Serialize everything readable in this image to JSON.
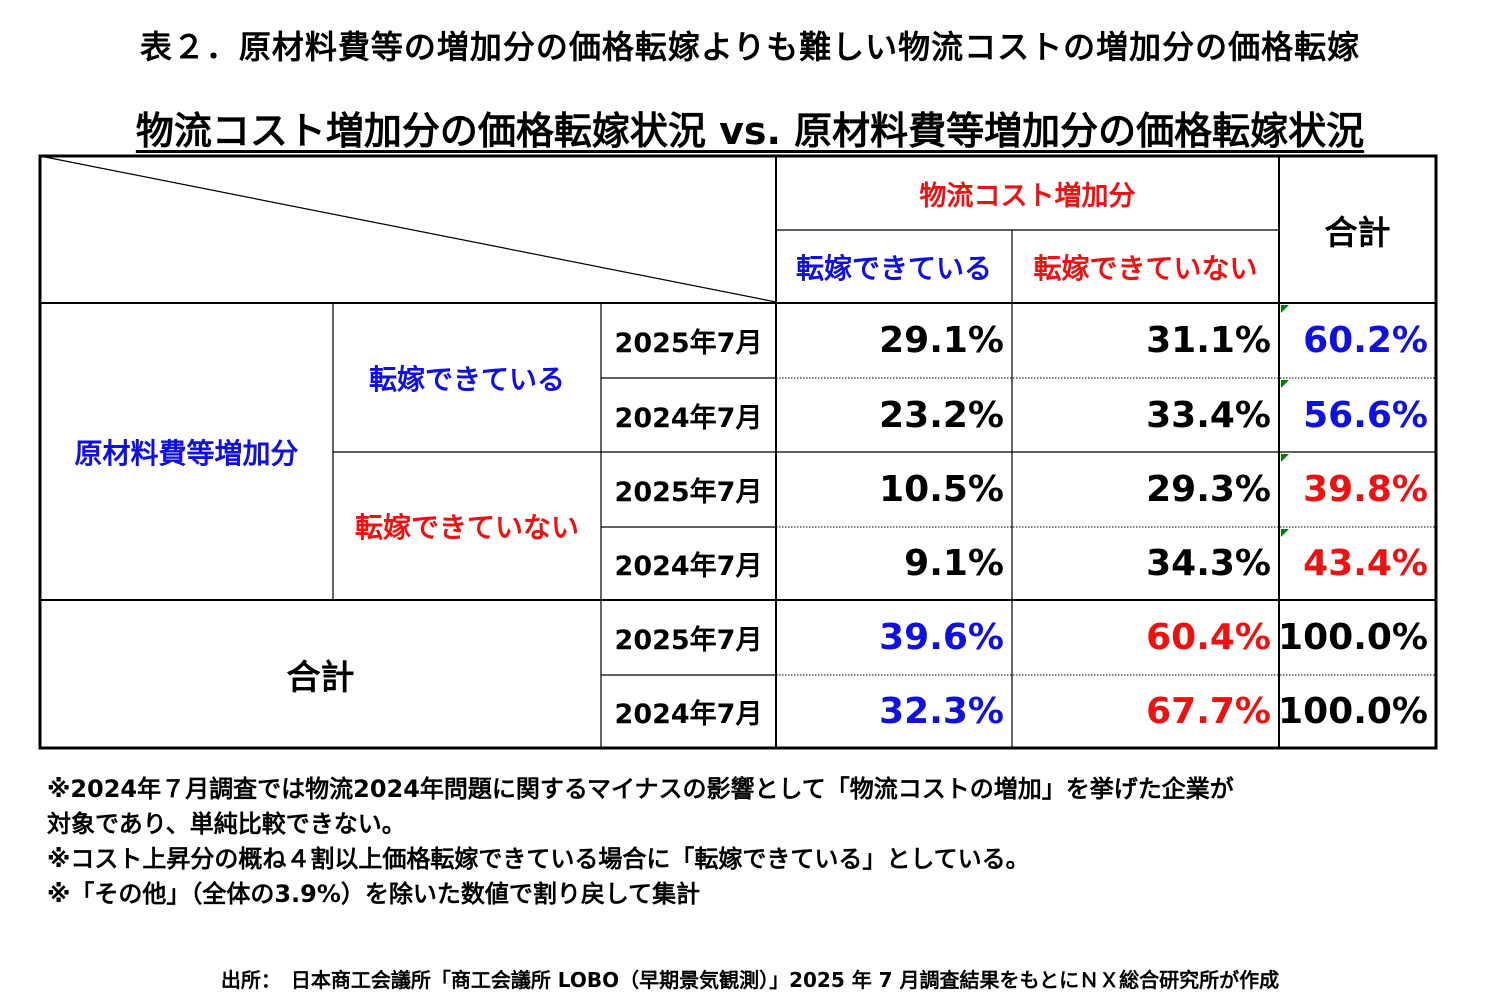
{
  "title": "表２．原材料費等の増加分の価格転嫁よりも難しい物流コストの増加分の価格転嫁",
  "subtitle": "物流コスト増加分の価格転嫁状況 vs. 原材料費等増加分の価格転嫁状況",
  "colors": {
    "blue": "#1010e0",
    "red": "#ee1111",
    "black": "#000000",
    "green_marker": "#008000"
  },
  "chart_data": {
    "type": "table",
    "column_group": "物流コスト増加分",
    "columns": [
      "転嫁できている",
      "転嫁できていない",
      "合計"
    ],
    "row_group": "原材料費等増加分",
    "rows": [
      {
        "group": "転嫁できている",
        "period": "2025年7月",
        "values": [
          "29.1%",
          "31.1%",
          "60.2%"
        ]
      },
      {
        "group": "転嫁できている",
        "period": "2024年7月",
        "values": [
          "23.2%",
          "33.4%",
          "56.6%"
        ]
      },
      {
        "group": "転嫁できていない",
        "period": "2025年7月",
        "values": [
          "10.5%",
          "29.3%",
          "39.8%"
        ]
      },
      {
        "group": "転嫁できていない",
        "period": "2024年7月",
        "values": [
          "9.1%",
          "34.3%",
          "43.4%"
        ]
      },
      {
        "group": "合計",
        "period": "2025年7月",
        "values": [
          "39.6%",
          "60.4%",
          "100.0%"
        ]
      },
      {
        "group": "合計",
        "period": "2024年7月",
        "values": [
          "32.3%",
          "67.7%",
          "100.0%"
        ]
      }
    ]
  },
  "notes": [
    "※2024年７月調査では物流2024年問題に関するマイナスの影響として「物流コストの増加」を挙げた企業が",
    "対象であり、単純比較できない。",
    "※コスト上昇分の概ね４割以上価格転嫁できている場合に「転嫁できている」としている。",
    "※「その他」（全体の3.9%）を除いた数値で割り戻して集計"
  ],
  "source": "出所：　日本商工会議所「商工会議所 LOBO（早期景気観測）」2025 年 7 月調査結果をもとにＮＸ総合研究所が作成"
}
